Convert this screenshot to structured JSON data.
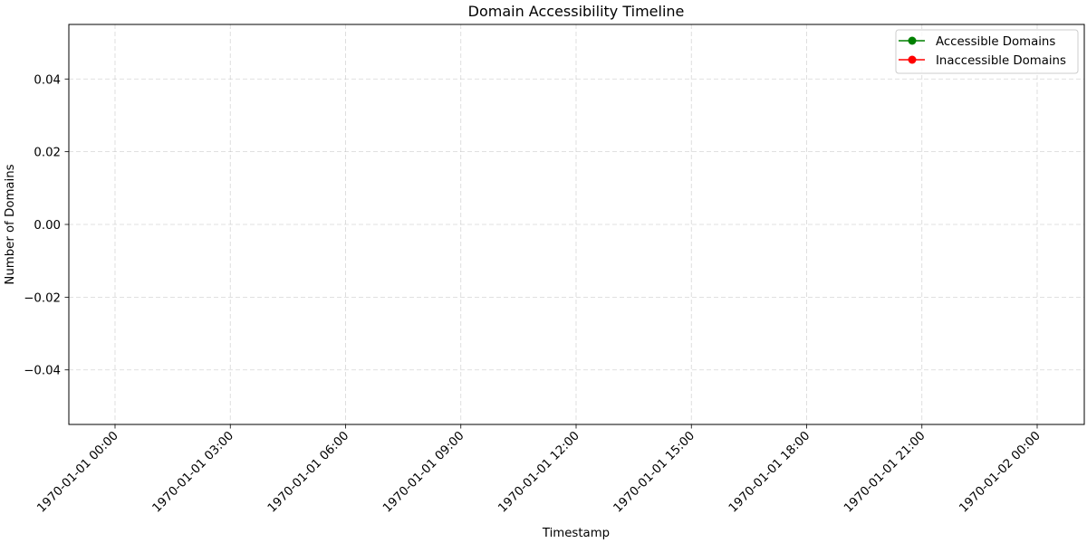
{
  "chart_data": {
    "type": "line",
    "title": "Domain Accessibility Timeline",
    "xlabel": "Timestamp",
    "ylabel": "Number of Domains",
    "x_ticks": [
      "1970-01-01 00:00",
      "1970-01-01 03:00",
      "1970-01-01 06:00",
      "1970-01-01 09:00",
      "1970-01-01 12:00",
      "1970-01-01 15:00",
      "1970-01-01 18:00",
      "1970-01-01 21:00",
      "1970-01-02 00:00"
    ],
    "y_ticks": [
      "0.04",
      "0.02",
      "0.00",
      "−0.02",
      "−0.04"
    ],
    "y_tick_values": [
      0.04,
      0.02,
      0.0,
      -0.02,
      -0.04
    ],
    "ylim": [
      -0.055,
      0.055
    ],
    "grid": true,
    "legend_position": "top-right",
    "series": [
      {
        "name": "Accessible Domains",
        "color": "#008000",
        "marker": "circle",
        "points": []
      },
      {
        "name": "Inaccessible Domains",
        "color": "#ff0000",
        "marker": "circle",
        "points": []
      }
    ]
  }
}
